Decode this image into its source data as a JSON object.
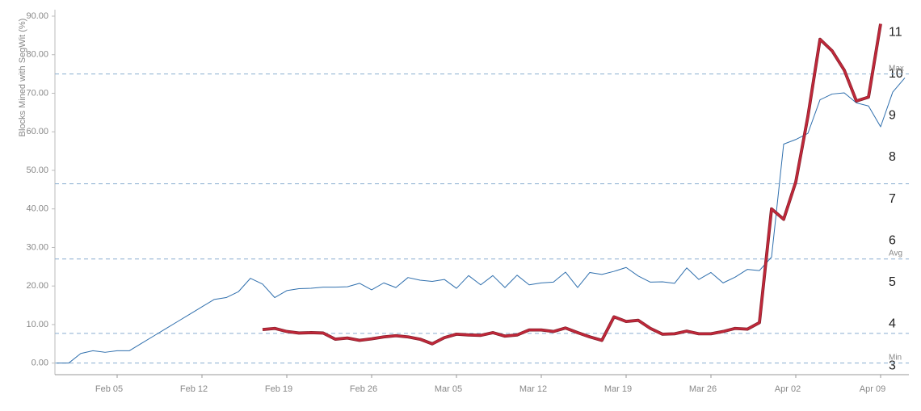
{
  "chart_data": {
    "type": "line",
    "y_label": "Blocks Mined with SegWit (%)",
    "categories": [
      null,
      null,
      null,
      null,
      null,
      "Feb 05",
      null,
      null,
      null,
      null,
      null,
      null,
      "Feb 12",
      null,
      null,
      null,
      null,
      null,
      null,
      "Feb 19",
      null,
      null,
      null,
      null,
      null,
      null,
      "Feb 26",
      null,
      null,
      null,
      null,
      null,
      null,
      "Mar 05",
      null,
      null,
      null,
      null,
      null,
      null,
      "Mar 12",
      null,
      null,
      null,
      null,
      null,
      null,
      "Mar 19",
      null,
      null,
      null,
      null,
      null,
      null,
      "Mar 26",
      null,
      null,
      null,
      null,
      null,
      null,
      "Apr 02",
      null,
      null,
      null,
      null,
      null,
      null,
      "Apr 09",
      null,
      null
    ],
    "series": [
      {
        "color": "#2f6fad",
        "values": [
          0,
          0,
          2.5,
          3.2,
          2.8,
          3.2,
          3.2,
          5.1,
          7.0,
          8.9,
          10.8,
          12.7,
          14.6,
          16.5,
          17,
          18.5,
          22,
          20.5,
          17,
          18.8,
          19.3,
          19.4,
          19.7,
          19.7,
          19.8,
          20.7,
          19,
          20.8,
          19.6,
          22.2,
          21.5,
          21.2,
          21.7,
          19.4,
          22.7,
          20.3,
          22.7,
          19.6,
          22.8,
          20.3,
          20.8,
          21,
          23.6,
          19.6,
          23.5,
          23,
          23.8,
          24.8,
          22.6,
          21,
          21.1,
          20.7,
          24.7,
          21.7,
          23.5,
          20.8,
          22.3,
          24.3,
          24,
          27.5,
          56.8,
          58,
          59.6,
          68.3,
          69.8,
          70.1,
          67.5,
          66.7,
          61.3,
          70.3,
          74
        ]
      },
      {
        "color": "#c0283a",
        "values": [
          null,
          null,
          null,
          null,
          null,
          null,
          null,
          null,
          null,
          null,
          null,
          null,
          null,
          null,
          null,
          null,
          null,
          8.7,
          9.0,
          8.2,
          7.8,
          7.9,
          7.8,
          6.2,
          6.5,
          5.9,
          6.3,
          6.8,
          7.1,
          6.8,
          6.2,
          5.0,
          6.6,
          7.5,
          7.3,
          7.2,
          7.9,
          7.0,
          7.3,
          8.6,
          8.6,
          8.2,
          9.1,
          7.9,
          6.8,
          5.9,
          12.0,
          10.8,
          11.1,
          9.0,
          7.5,
          7.6,
          8.3,
          7.6,
          7.6,
          8.2,
          9.0,
          8.8,
          10.5,
          40.0,
          37.3,
          47,
          64,
          84,
          81,
          76,
          68,
          69,
          88,
          null,
          null
        ]
      }
    ],
    "ylim": [
      -3,
      90
    ],
    "yticks": [
      {
        "value": 0,
        "label": "0.00"
      },
      {
        "value": 10,
        "label": "10.00"
      },
      {
        "value": 20,
        "label": "20.00"
      },
      {
        "value": 30,
        "label": "30.00"
      },
      {
        "value": 40,
        "label": "40.00"
      },
      {
        "value": 50,
        "label": "50.00"
      },
      {
        "value": 60,
        "label": "60.00"
      },
      {
        "value": 70,
        "label": "70.00"
      },
      {
        "value": 80,
        "label": "80.00"
      },
      {
        "value": 90,
        "label": "90.00"
      }
    ],
    "y2lim": [
      2.79,
      11.39
    ],
    "y2ticks": [
      3,
      4,
      5,
      6,
      7,
      8,
      9,
      10,
      11
    ],
    "reference_lines": [
      {
        "value": 75,
        "label": "Max"
      },
      {
        "value": 46.5
      },
      {
        "value": 27,
        "label": "Avg"
      },
      {
        "value": 7.7
      },
      {
        "value": 0,
        "label": "Min"
      }
    ]
  }
}
